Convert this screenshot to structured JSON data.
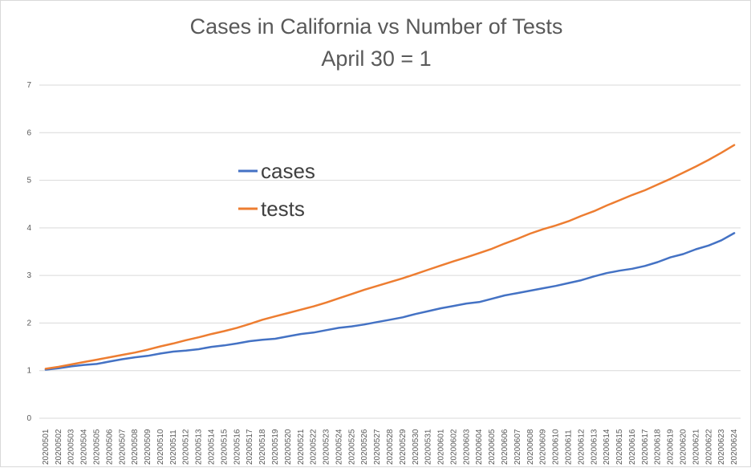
{
  "chart_data": {
    "type": "line",
    "title": "Cases in California vs Number of Tests",
    "subtitle": "April 30 = 1",
    "xlabel": "",
    "ylabel": "",
    "ylim": [
      0,
      7
    ],
    "yticks": [
      0,
      1,
      2,
      3,
      4,
      5,
      6,
      7
    ],
    "grid": true,
    "legend_position": "upper-left-inside",
    "categories": [
      "20200501",
      "20200502",
      "20200503",
      "20200504",
      "20200505",
      "20200506",
      "20200507",
      "20200508",
      "20200509",
      "20200510",
      "20200511",
      "20200512",
      "20200513",
      "20200514",
      "20200515",
      "20200516",
      "20200517",
      "20200518",
      "20200519",
      "20200520",
      "20200521",
      "20200522",
      "20200523",
      "20200524",
      "20200525",
      "20200526",
      "20200527",
      "20200528",
      "20200529",
      "20200530",
      "20200531",
      "20200601",
      "20200602",
      "20200603",
      "20200604",
      "20200605",
      "20200606",
      "20200607",
      "20200608",
      "20200609",
      "20200610",
      "20200611",
      "20200612",
      "20200613",
      "20200614",
      "20200615",
      "20200616",
      "20200617",
      "20200618",
      "20200619",
      "20200620",
      "20200621",
      "20200622",
      "20200623",
      "20200624"
    ],
    "series": [
      {
        "name": "cases",
        "color": "#4472c4",
        "values": [
          1.02,
          1.05,
          1.09,
          1.12,
          1.14,
          1.19,
          1.24,
          1.28,
          1.31,
          1.36,
          1.4,
          1.42,
          1.45,
          1.5,
          1.53,
          1.57,
          1.62,
          1.65,
          1.67,
          1.72,
          1.77,
          1.8,
          1.85,
          1.9,
          1.93,
          1.97,
          2.02,
          2.07,
          2.12,
          2.19,
          2.25,
          2.31,
          2.36,
          2.41,
          2.44,
          2.51,
          2.58,
          2.63,
          2.68,
          2.73,
          2.78,
          2.84,
          2.9,
          2.98,
          3.05,
          3.1,
          3.14,
          3.2,
          3.28,
          3.38,
          3.45,
          3.55,
          3.63,
          3.74,
          3.89
        ]
      },
      {
        "name": "tests",
        "color": "#ed7d31",
        "values": [
          1.04,
          1.08,
          1.13,
          1.18,
          1.23,
          1.28,
          1.33,
          1.38,
          1.44,
          1.51,
          1.57,
          1.64,
          1.7,
          1.77,
          1.83,
          1.9,
          1.98,
          2.07,
          2.14,
          2.21,
          2.28,
          2.35,
          2.43,
          2.52,
          2.61,
          2.7,
          2.78,
          2.86,
          2.94,
          3.03,
          3.12,
          3.21,
          3.3,
          3.38,
          3.47,
          3.56,
          3.67,
          3.77,
          3.88,
          3.97,
          4.05,
          4.14,
          4.25,
          4.35,
          4.47,
          4.58,
          4.69,
          4.79,
          4.91,
          5.03,
          5.16,
          5.29,
          5.43,
          5.58,
          5.74
        ]
      }
    ]
  }
}
